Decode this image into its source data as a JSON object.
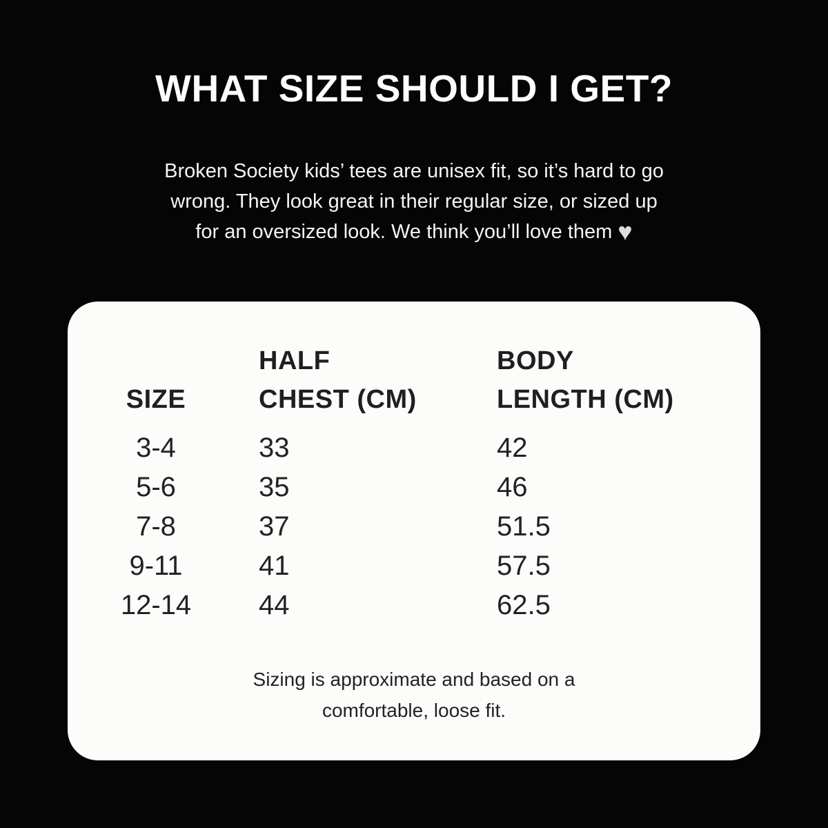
{
  "page": {
    "background_color": "#050505",
    "card_color": "#fcfcfa",
    "title_color": "#fdfdfd",
    "body_text_color": "#f5f5f5",
    "table_text_color": "#222222",
    "heart_color": "#dcdcdc"
  },
  "header": {
    "title": "WHAT SIZE SHOULD I GET?"
  },
  "intro": {
    "line1": "Broken Society kids’ tees are unisex fit, so it’s hard to go",
    "line2": "wrong. They look great in their regular size, or sized up",
    "line3": "for an oversized look. We think you’ll love them",
    "heart_icon": "♥"
  },
  "size_table": {
    "columns": [
      {
        "line1": "",
        "line2": "SIZE"
      },
      {
        "line1": "HALF",
        "line2": "CHEST (CM)"
      },
      {
        "line1": "BODY",
        "line2": "LENGTH (CM)"
      }
    ],
    "rows": [
      {
        "size": "3-4",
        "half_chest_cm": "33",
        "body_length_cm": "42"
      },
      {
        "size": "5-6",
        "half_chest_cm": "35",
        "body_length_cm": "46"
      },
      {
        "size": "7-8",
        "half_chest_cm": "37",
        "body_length_cm": "51.5"
      },
      {
        "size": "9-11",
        "half_chest_cm": "41",
        "body_length_cm": "57.5"
      },
      {
        "size": "12-14",
        "half_chest_cm": "44",
        "body_length_cm": "62.5"
      }
    ]
  },
  "footnote": {
    "line1": "Sizing is approximate and based on a",
    "line2": "comfortable, loose fit."
  },
  "chart_data": {
    "type": "table",
    "title": "WHAT SIZE SHOULD I GET?",
    "columns": [
      "SIZE",
      "HALF CHEST (CM)",
      "BODY LENGTH (CM)"
    ],
    "rows": [
      [
        "3-4",
        33,
        42
      ],
      [
        "5-6",
        35,
        46
      ],
      [
        "7-8",
        37,
        51.5
      ],
      [
        "9-11",
        41,
        57.5
      ],
      [
        "12-14",
        44,
        62.5
      ]
    ],
    "notes": "Sizing is approximate and based on a comfortable, loose fit. Broken Society kids’ tees are unisex fit."
  }
}
